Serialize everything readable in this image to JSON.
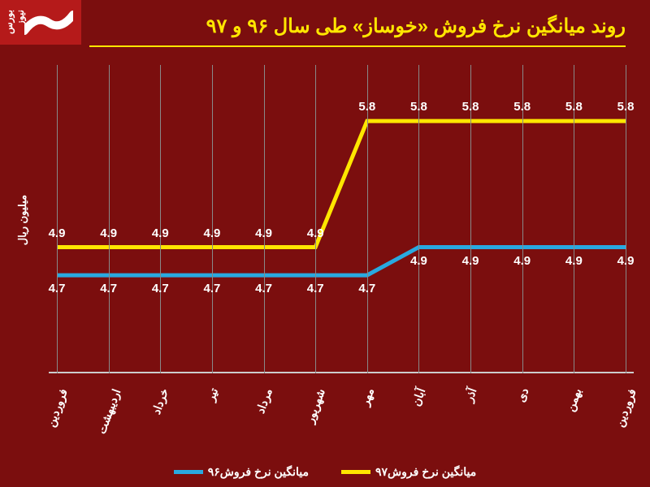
{
  "title": "روند میانگین نرخ فروش «خوساز» طی سال ۹۶ و ۹۷",
  "logo_text": "بورس نیوز",
  "y_axis_label": "میلیون ریال",
  "background_color": "#7b0e0e",
  "title_color": "#ffe600",
  "text_color": "#ffffff",
  "grid_color": "#888888",
  "chart": {
    "type": "line",
    "categories": [
      "فروردین",
      "اردیبهشت",
      "خرداد",
      "تیر",
      "مرداد",
      "شهریور",
      "مهر",
      "آبان",
      "آذر",
      "دی",
      "بهمن",
      "فروردین"
    ],
    "series": [
      {
        "name": "میانگین نرخ فروش۹۷",
        "color": "#ffe600",
        "values": [
          4.9,
          4.9,
          4.9,
          4.9,
          4.9,
          4.9,
          5.8,
          5.8,
          5.8,
          5.8,
          5.8,
          5.8
        ],
        "line_width": 5
      },
      {
        "name": "میانگین نرخ فروش۹۶",
        "color": "#29a9e0",
        "values": [
          4.7,
          4.7,
          4.7,
          4.7,
          4.7,
          4.7,
          4.7,
          4.9,
          4.9,
          4.9,
          4.9,
          4.9
        ],
        "line_width": 5
      }
    ],
    "y_min": 4.0,
    "y_max": 6.2,
    "label_fontsize": 15
  },
  "legend": {
    "items": [
      {
        "label": "میانگین نرخ فروش۹۷",
        "color": "#ffe600"
      },
      {
        "label": "میانگین نرخ فروش۹۶",
        "color": "#29a9e0"
      }
    ]
  }
}
